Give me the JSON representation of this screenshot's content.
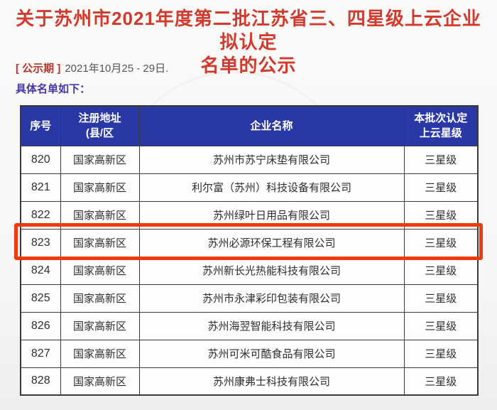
{
  "page": {
    "title_line1": "关于苏州市2021年度第二批江苏省三、四星级上云企业拟认定",
    "title_line2": "名单的公示",
    "notice_label": "[ 公示期 ]",
    "notice_value": "2021年10月25 - 29日.",
    "list_intro": "具体名单如下："
  },
  "colors": {
    "title_red": "#d23a2e",
    "notice_label_red": "#b5362d",
    "intro_purple": "#4a35a8",
    "table_header_blue": "#2a38a6",
    "highlight_border_red": "#ee3a0e"
  },
  "table": {
    "headers": {
      "no": "序号",
      "address": "注册地址\n(县/区",
      "company": "企业名称",
      "star": "本批次认定\n上云星级"
    },
    "rows": [
      {
        "no": "820",
        "address": "国家高新区",
        "company": "苏州市苏宁床垫有限公司",
        "star": "三星级",
        "highlighted": false
      },
      {
        "no": "821",
        "address": "国家高新区",
        "company": "利尔富（苏州）科技设备有限公司",
        "star": "三星级",
        "highlighted": false
      },
      {
        "no": "822",
        "address": "国家高新区",
        "company": "苏州绿叶日用品有限公司",
        "star": "三星级",
        "highlighted": false
      },
      {
        "no": "823",
        "address": "国家高新区",
        "company": "苏州必源环保工程有限公司",
        "star": "三星级",
        "highlighted": true
      },
      {
        "no": "824",
        "address": "国家高新区",
        "company": "苏州新长光热能科技有限公司",
        "star": "三星级",
        "highlighted": false
      },
      {
        "no": "825",
        "address": "国家高新区",
        "company": "苏州市永津彩印包装有限公司",
        "star": "三星级",
        "highlighted": false
      },
      {
        "no": "826",
        "address": "国家高新区",
        "company": "苏州海翌智能科技有限公司",
        "star": "三星级",
        "highlighted": false
      },
      {
        "no": "827",
        "address": "国家高新区",
        "company": "苏州可米可酷食品有限公司",
        "star": "三星级",
        "highlighted": false
      },
      {
        "no": "828",
        "address": "国家高新区",
        "company": "苏州康弗士科技有限公司",
        "star": "三星级",
        "highlighted": false
      }
    ]
  }
}
